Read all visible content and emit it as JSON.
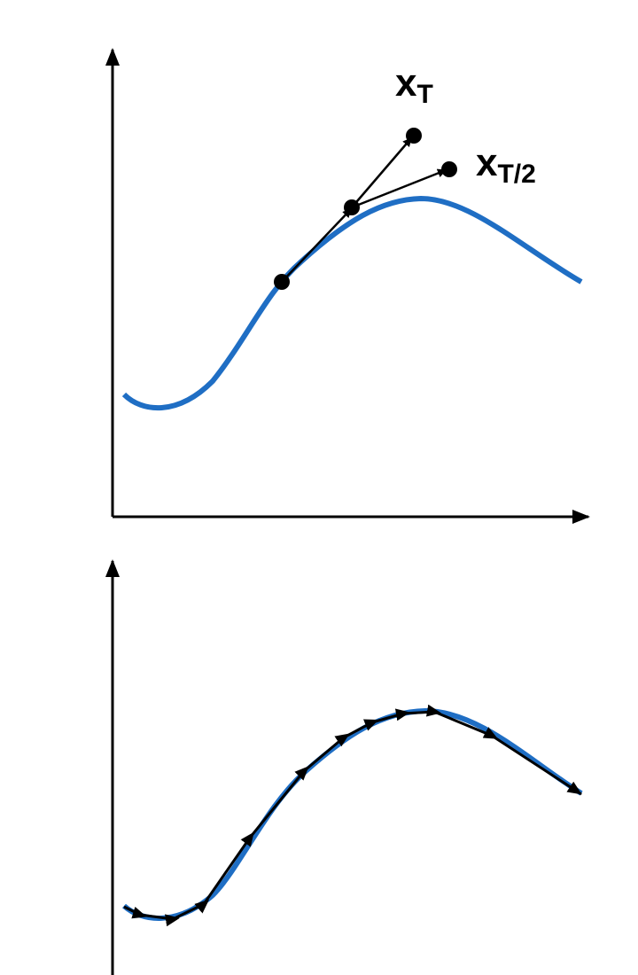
{
  "labels": [
    {
      "main": "x",
      "sub": "T"
    },
    {
      "main": "x",
      "sub": "T/2"
    }
  ]
}
